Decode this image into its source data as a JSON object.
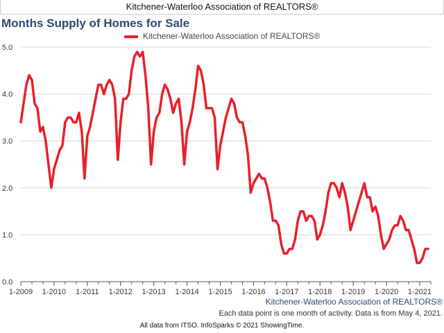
{
  "header": {
    "title": "Kitchener-Waterloo Association of REALTORS®"
  },
  "chart_data": {
    "type": "line",
    "title": "Months Supply of Homes for Sale",
    "xlabel": "",
    "ylabel": "",
    "ylim": [
      0,
      5
    ],
    "yticks": [
      "0.0",
      "1.0",
      "2.0",
      "3.0",
      "4.0",
      "5.0"
    ],
    "xticks": [
      "1-2009",
      "1-2010",
      "1-2011",
      "1-2012",
      "1-2013",
      "1-2014",
      "1-2015",
      "1-2016",
      "1-2017",
      "1-2018",
      "1-2019",
      "1-2020",
      "1-2021"
    ],
    "grid": "horizontal",
    "legend_position": "top-center",
    "color": "#e8202a",
    "x_start": "2009-01",
    "x_end": "2021-04",
    "series": [
      {
        "name": "Kitchener-Waterloo Association of REALTORS®",
        "values": [
          3.4,
          3.8,
          4.2,
          4.4,
          4.3,
          3.8,
          3.7,
          3.2,
          3.3,
          3.0,
          2.5,
          2.0,
          2.4,
          2.6,
          2.8,
          2.9,
          3.4,
          3.5,
          3.5,
          3.4,
          3.4,
          3.6,
          3.2,
          2.2,
          3.1,
          3.3,
          3.6,
          3.9,
          4.2,
          4.2,
          4.0,
          4.2,
          4.3,
          4.2,
          3.9,
          2.6,
          3.4,
          3.9,
          3.9,
          4.0,
          4.5,
          4.8,
          4.9,
          4.8,
          4.9,
          4.4,
          3.7,
          2.5,
          3.2,
          3.5,
          3.6,
          4.0,
          4.2,
          4.1,
          3.9,
          3.6,
          3.8,
          3.9,
          3.4,
          2.5,
          3.2,
          3.4,
          3.7,
          4.1,
          4.6,
          4.5,
          4.2,
          3.7,
          3.7,
          3.7,
          3.5,
          2.4,
          2.9,
          3.2,
          3.5,
          3.7,
          3.9,
          3.8,
          3.5,
          3.4,
          3.4,
          3.1,
          2.7,
          1.9,
          2.1,
          2.2,
          2.3,
          2.2,
          2.2,
          2.0,
          1.7,
          1.3,
          1.3,
          1.2,
          0.8,
          0.6,
          0.6,
          0.7,
          0.7,
          0.9,
          1.3,
          1.5,
          1.5,
          1.3,
          1.4,
          1.4,
          1.3,
          0.9,
          1.0,
          1.2,
          1.5,
          1.9,
          2.1,
          2.1,
          2.0,
          1.8,
          2.1,
          1.9,
          1.6,
          1.1,
          1.3,
          1.5,
          1.7,
          1.9,
          2.1,
          1.8,
          1.8,
          1.5,
          1.6,
          1.4,
          1.0,
          0.7,
          0.8,
          0.9,
          1.1,
          1.2,
          1.2,
          1.4,
          1.3,
          1.1,
          1.1,
          0.9,
          0.7,
          0.4,
          0.4,
          0.5,
          0.7,
          0.7
        ]
      }
    ]
  },
  "footer": {
    "source": "Kitchener-Waterloo Association of REALTORS®",
    "note": "Each data point is one month of activity. Data is from May 4, 2021.",
    "credit": "All data from ITSO. InfoSparks © 2021 ShowingTime."
  }
}
